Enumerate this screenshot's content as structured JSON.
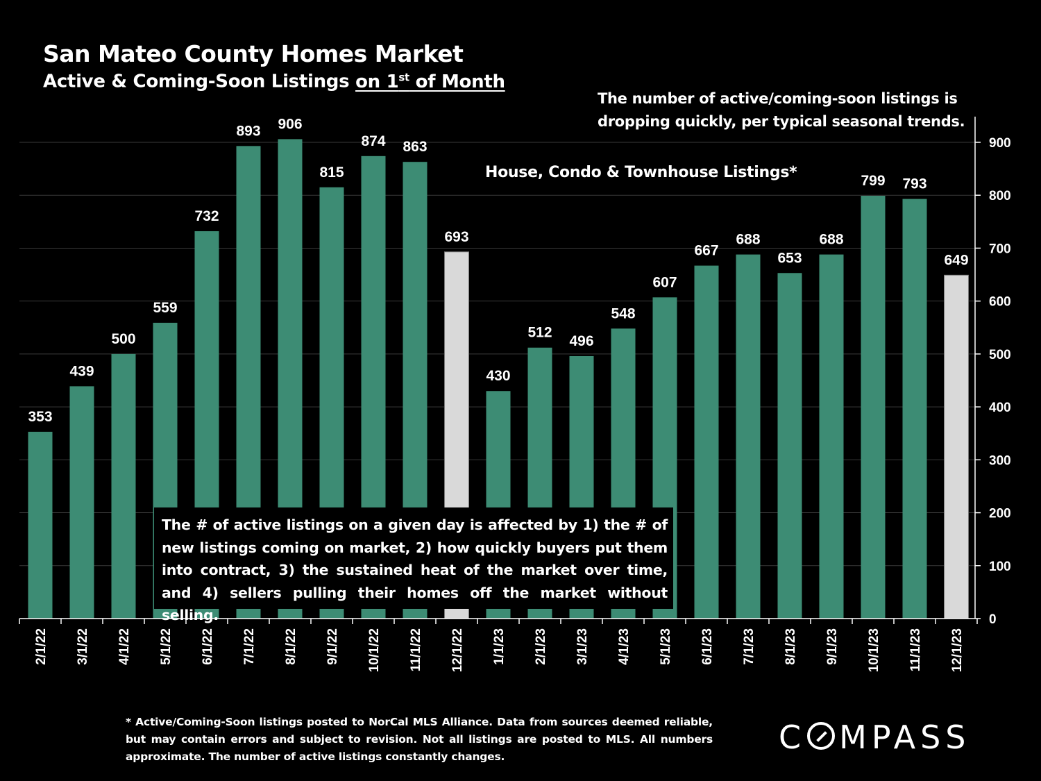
{
  "header": {
    "title": "San Mateo County Homes Market",
    "subtitle_prefix": "Active & Coming-Soon Listings ",
    "subtitle_underlined_pre": "on 1",
    "subtitle_sup": "st",
    "subtitle_underlined_post": " of Month"
  },
  "annotations": {
    "top_right": "The number of active/coming-soon listings is dropping quickly, per typical seasonal trends.",
    "series_label": "House, Condo & Townhouse Listings*",
    "explanation": "The # of active listings on a given day is affected by 1) the # of new listings coming on market, 2) how quickly buyers put them into contract, 3) the sustained heat of the market over time, and 4) sellers pulling their homes off the market without selling."
  },
  "footnote": "* Active/Coming-Soon listings posted to NorCal MLS Alliance.  Data from sources deemed reliable, but may contain errors and subject to revision.  Not all listings are posted to MLS. All numbers approximate. The number of active listings constantly changes.",
  "logo": "COMPASS",
  "colors": {
    "background": "#000000",
    "bar": "#3d8c74",
    "highlight_bar": "#d9d9d9",
    "text": "#ffffff",
    "axis": "#ffffff",
    "grid": "#3a3a3a"
  },
  "chart_data": {
    "type": "bar",
    "categories": [
      "2/1/22",
      "3/1/22",
      "4/1/22",
      "5/1/22",
      "6/1/22",
      "7/1/22",
      "8/1/22",
      "9/1/22",
      "10/1/22",
      "11/1/22",
      "12/1/22",
      "1/1/23",
      "2/1/23",
      "3/1/23",
      "4/1/23",
      "5/1/23",
      "6/1/23",
      "7/1/23",
      "8/1/23",
      "9/1/23",
      "10/1/23",
      "11/1/23",
      "12/1/23"
    ],
    "values": [
      353,
      439,
      500,
      559,
      732,
      893,
      906,
      815,
      874,
      863,
      693,
      430,
      512,
      496,
      548,
      607,
      667,
      688,
      653,
      688,
      799,
      793,
      649
    ],
    "highlighted": [
      "12/1/22",
      "12/1/23"
    ],
    "ylim": [
      0,
      900
    ],
    "yticks": [
      0,
      100,
      200,
      300,
      400,
      500,
      600,
      700,
      800,
      900
    ],
    "y_axis_side": "right",
    "grid": true,
    "data_labels": true
  }
}
